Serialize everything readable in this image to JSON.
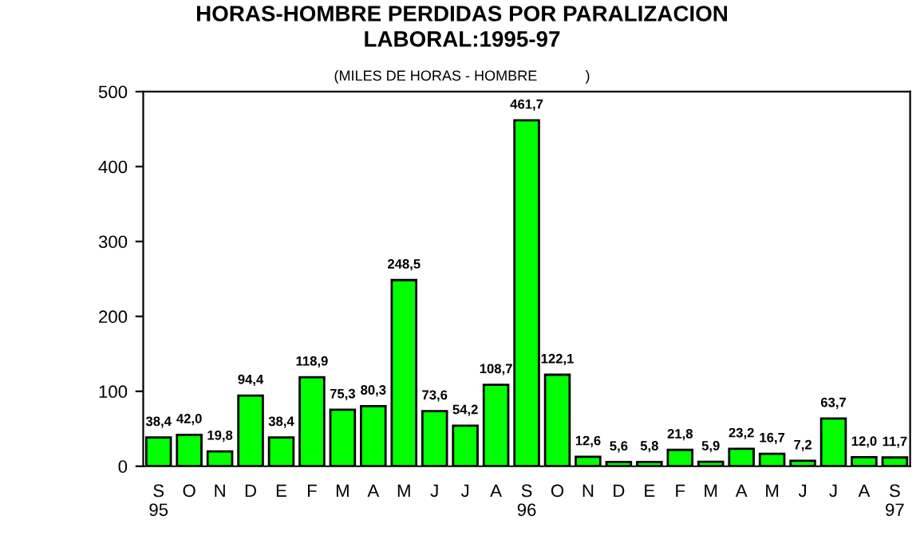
{
  "chart_data": {
    "type": "bar",
    "title": "HORAS-HOMBRE PERDIDAS POR PARALIZACION\nLABORAL:1995-97",
    "subtitle": "(MILES DE HORAS - HOMBRE            )",
    "categories": [
      "S\n95",
      "O",
      "N",
      "D",
      "E",
      "F",
      "M",
      "A",
      "M",
      "J",
      "J",
      "A",
      "S\n96",
      "O",
      "N",
      "D",
      "E",
      "F",
      "M",
      "A",
      "M",
      "J",
      "J",
      "A",
      "S\n97"
    ],
    "values": [
      38.4,
      42.0,
      19.8,
      94.4,
      38.4,
      118.9,
      75.3,
      80.3,
      248.5,
      73.6,
      54.2,
      108.7,
      461.7,
      122.1,
      12.6,
      5.6,
      5.8,
      21.8,
      5.9,
      23.2,
      16.7,
      7.2,
      63.7,
      12.0,
      11.7
    ],
    "value_labels": [
      "38,4",
      "42,0",
      "19,8",
      "94,4",
      "38,4",
      "118,9",
      "75,3",
      "80,3",
      "248,5",
      "73,6",
      "54,2",
      "108,7",
      "461,7",
      "122,1",
      "12,6",
      "5,6",
      "5,8",
      "21,8",
      "5,9",
      "23,2",
      "16,7",
      "7,2",
      "63,7",
      "12,0",
      "11,7"
    ],
    "color": "#00ff00",
    "ylim": [
      0,
      500
    ],
    "yticks": [
      0,
      100,
      200,
      300,
      400,
      500
    ],
    "grid": false,
    "legend": false
  }
}
